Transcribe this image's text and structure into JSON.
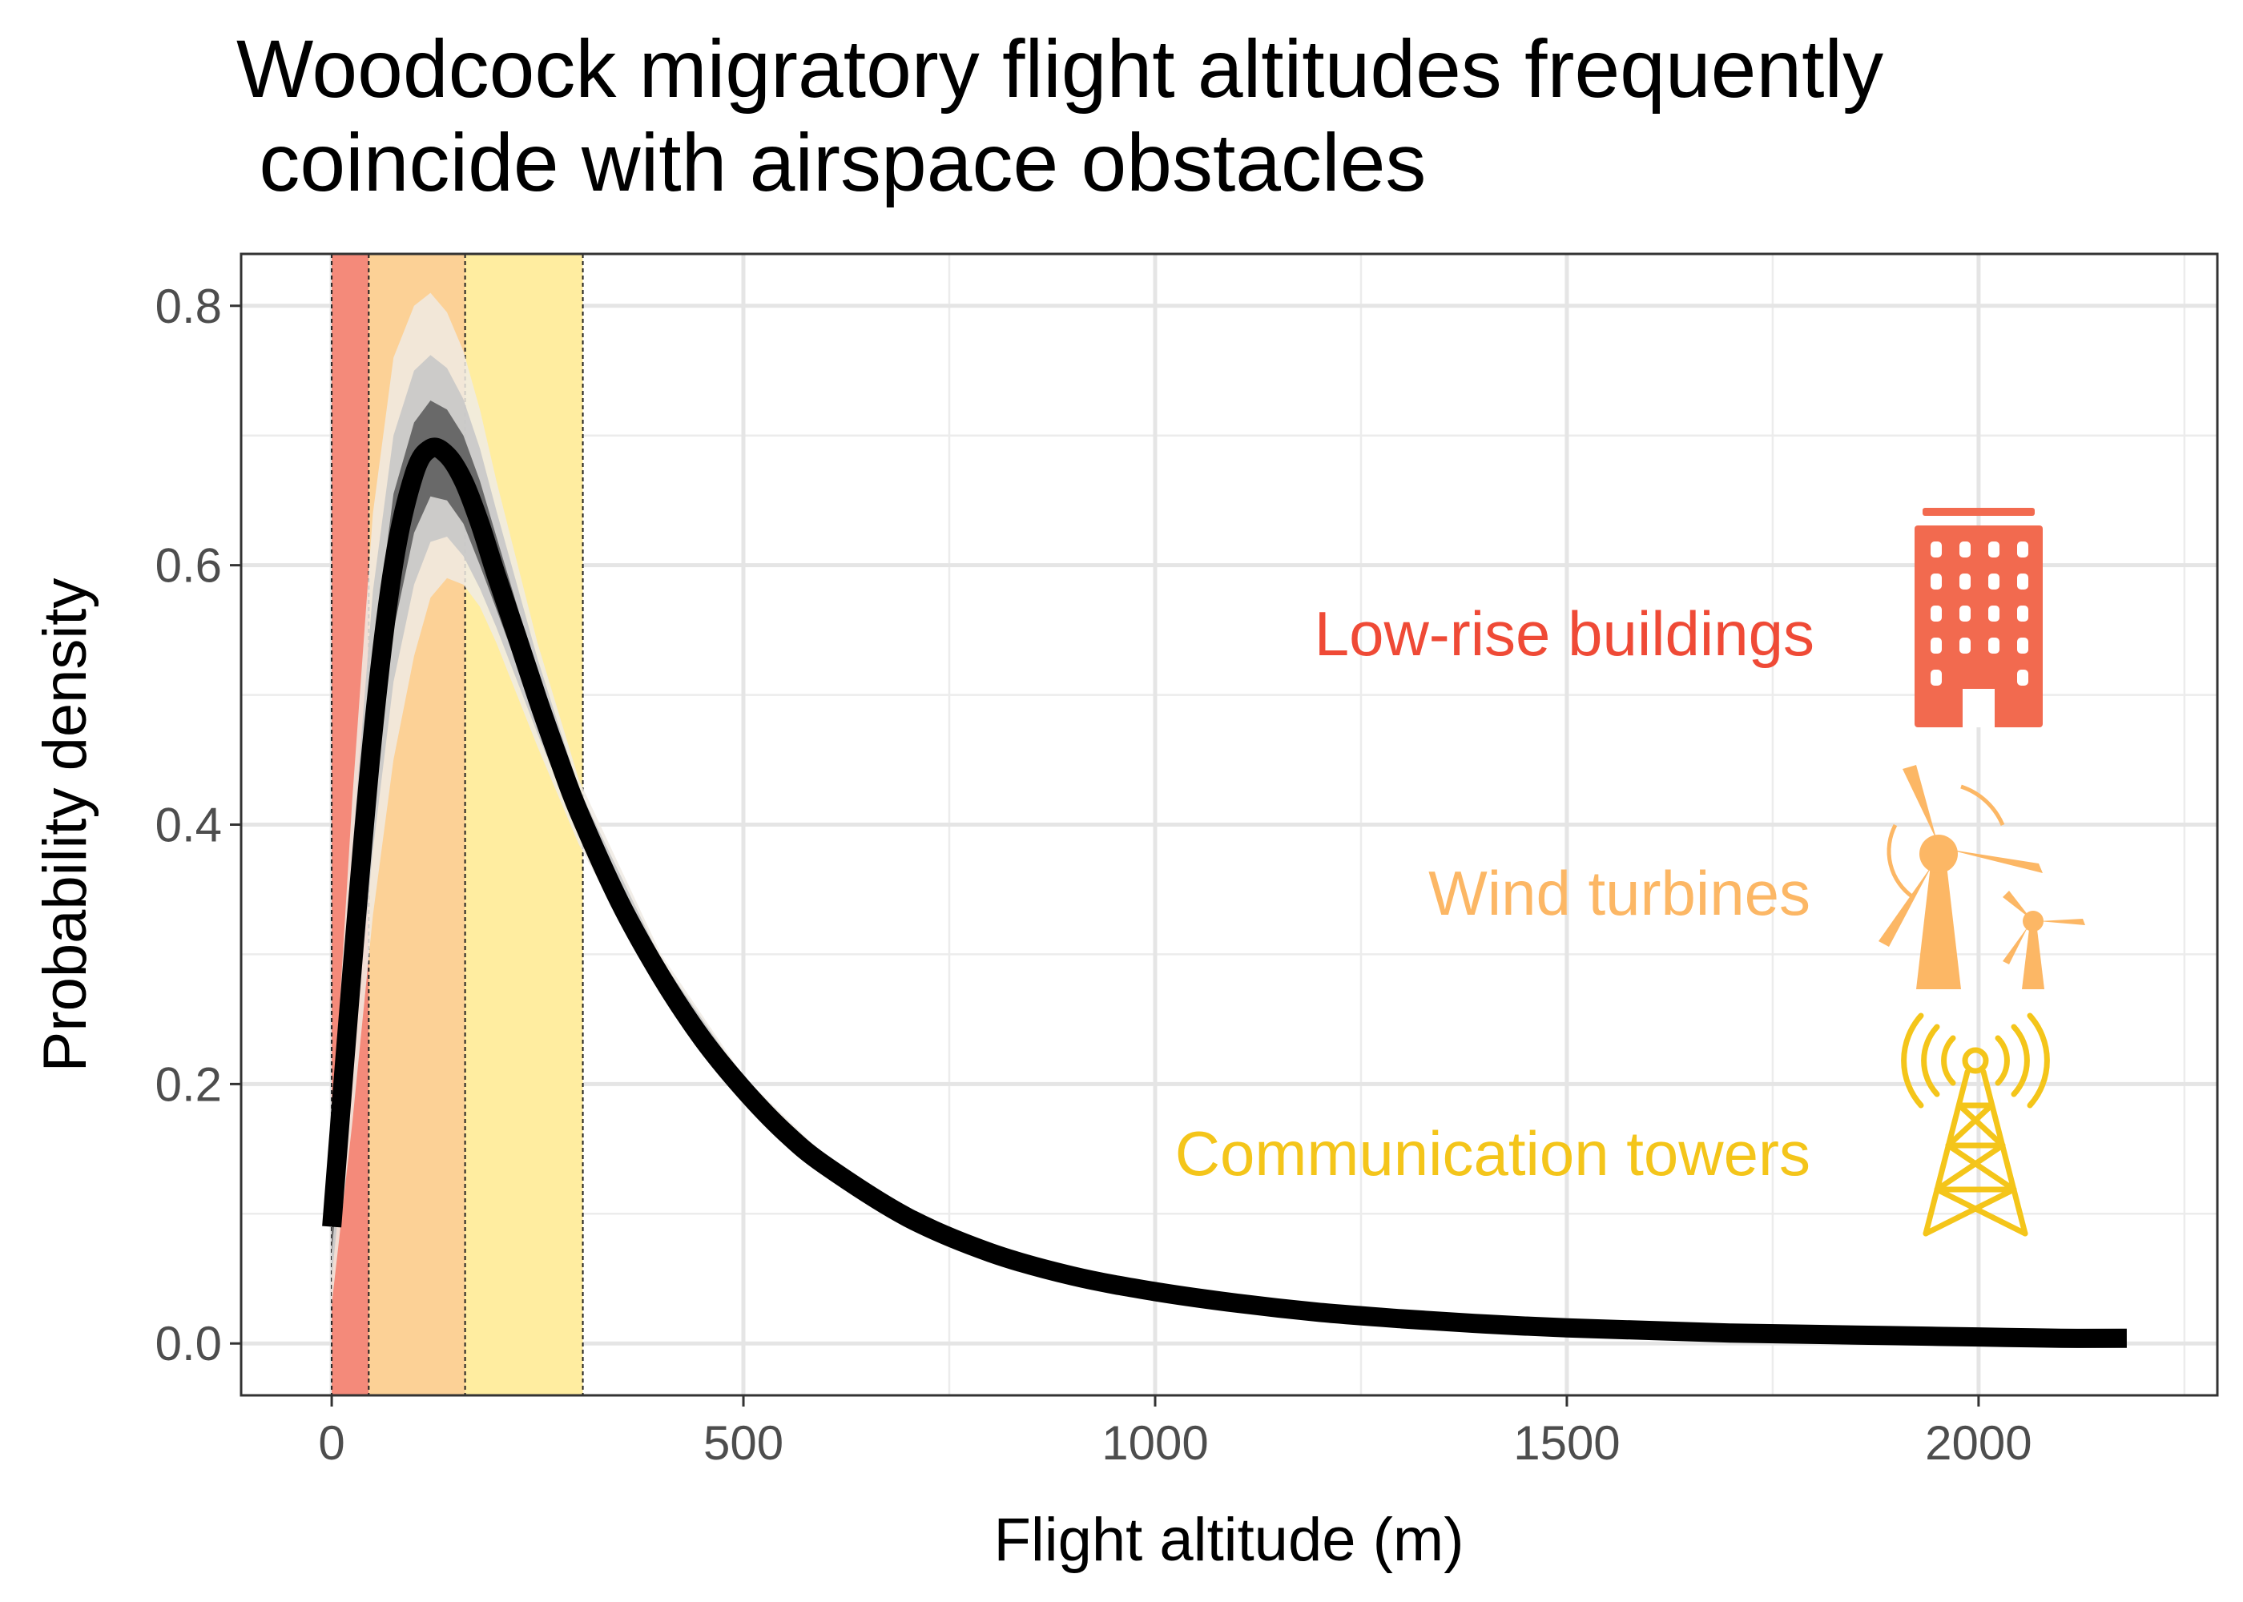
{
  "chart_data": {
    "type": "line",
    "title": "Woodcock migratory flight altitudes frequently\n coincide with airspace obstacles",
    "xlabel": "Flight altitude (m)",
    "ylabel": "Probability density",
    "xlim": [
      -110,
      2290
    ],
    "ylim": [
      -0.04,
      0.84
    ],
    "x_ticks": [
      0,
      500,
      1000,
      1500,
      2000
    ],
    "x_tick_labels": [
      "0",
      "500",
      "1000",
      "1500",
      "2000"
    ],
    "y_ticks": [
      0.0,
      0.2,
      0.4,
      0.6,
      0.8
    ],
    "y_tick_labels": [
      "0.0",
      "0.2",
      "0.4",
      "0.6",
      "0.8"
    ],
    "grid": true,
    "theme": "bw",
    "series": [
      {
        "x": [
          0,
          25,
          50,
          75,
          100,
          120,
          140,
          160,
          180,
          200,
          225,
          250,
          275,
          300,
          350,
          400,
          450,
          500,
          550,
          600,
          700,
          800,
          900,
          1000,
          1100,
          1200,
          1300,
          1400,
          1500,
          1600,
          1700,
          1800,
          1900,
          2000,
          2100,
          2180
        ],
        "values": [
          0.09,
          0.29,
          0.47,
          0.6,
          0.67,
          0.69,
          0.685,
          0.665,
          0.632,
          0.592,
          0.545,
          0.497,
          0.452,
          0.41,
          0.34,
          0.283,
          0.235,
          0.196,
          0.163,
          0.137,
          0.097,
          0.07,
          0.052,
          0.04,
          0.031,
          0.024,
          0.019,
          0.015,
          0.012,
          0.01,
          0.008,
          0.007,
          0.006,
          0.005,
          0.004,
          0.004
        ],
        "color": "#000000"
      }
    ],
    "uncertainty_bands": [
      {
        "level": "outer",
        "color": "#f0ebe4",
        "x": [
          0,
          25,
          50,
          75,
          100,
          120,
          140,
          160,
          180,
          200,
          250,
          300,
          400,
          500,
          600,
          700,
          800,
          1000
        ],
        "upper": [
          0.16,
          0.42,
          0.64,
          0.76,
          0.8,
          0.81,
          0.795,
          0.765,
          0.72,
          0.665,
          0.54,
          0.435,
          0.3,
          0.206,
          0.144,
          0.102,
          0.074,
          0.042
        ],
        "lower": [
          0.03,
          0.17,
          0.33,
          0.45,
          0.53,
          0.575,
          0.59,
          0.585,
          0.568,
          0.54,
          0.46,
          0.385,
          0.268,
          0.186,
          0.13,
          0.092,
          0.066,
          0.038
        ]
      },
      {
        "level": "middle",
        "color": "#c8c8c8",
        "x": [
          0,
          25,
          50,
          75,
          100,
          120,
          140,
          160,
          180,
          200,
          250,
          300,
          400,
          500,
          600,
          700,
          800,
          1000
        ],
        "upper": [
          0.13,
          0.38,
          0.58,
          0.7,
          0.75,
          0.762,
          0.752,
          0.728,
          0.69,
          0.642,
          0.528,
          0.428,
          0.296,
          0.204,
          0.142,
          0.101,
          0.073,
          0.041
        ],
        "lower": [
          0.05,
          0.21,
          0.38,
          0.51,
          0.585,
          0.618,
          0.622,
          0.607,
          0.582,
          0.552,
          0.47,
          0.393,
          0.272,
          0.188,
          0.132,
          0.093,
          0.067,
          0.039
        ]
      },
      {
        "level": "inner",
        "color": "#5e5e5e",
        "x": [
          0,
          25,
          50,
          75,
          100,
          120,
          140,
          160,
          180,
          200,
          250,
          300,
          400,
          500,
          600,
          700,
          800,
          1000
        ],
        "upper": [
          0.11,
          0.34,
          0.53,
          0.655,
          0.71,
          0.727,
          0.72,
          0.7,
          0.665,
          0.622,
          0.516,
          0.42,
          0.29,
          0.2,
          0.14,
          0.099,
          0.072,
          0.041
        ],
        "lower": [
          0.07,
          0.25,
          0.42,
          0.55,
          0.625,
          0.653,
          0.65,
          0.632,
          0.6,
          0.566,
          0.48,
          0.4,
          0.276,
          0.192,
          0.134,
          0.095,
          0.068,
          0.039
        ]
      }
    ],
    "shaded_ranges": [
      {
        "x_start": 0,
        "x_end": 45,
        "color": "#f48a7a"
      },
      {
        "x_start": 45,
        "x_end": 162,
        "color": "#fcd196"
      },
      {
        "x_start": 162,
        "x_end": 305,
        "color": "#ffeda0"
      }
    ],
    "annotations": [
      {
        "text": "Low-rise buildings",
        "color": "#ef4a36",
        "icon": "building-icon"
      },
      {
        "text": "Wind turbines",
        "color": "#fcb765",
        "icon": "wind-turbine-icon"
      },
      {
        "text": "Communication towers",
        "color": "#f4c51a",
        "icon": "communication-tower-icon"
      }
    ]
  }
}
